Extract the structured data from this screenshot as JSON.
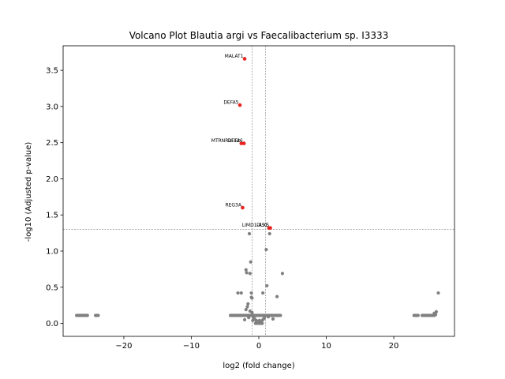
{
  "chart_data": {
    "type": "scatter",
    "title": "Volcano Plot Blautia argi vs Faecalibacterium sp. I3333",
    "xlabel": "log2 (fold change)",
    "ylabel": "-log10 (Adjusted p-value)",
    "xlim": [
      -29.0,
      29.0
    ],
    "ylim": [
      -0.18,
      3.84
    ],
    "xticks": [
      -20,
      -10,
      0,
      10,
      20
    ],
    "yticks": [
      0.0,
      0.5,
      1.0,
      1.5,
      2.0,
      2.5,
      3.0,
      3.5
    ],
    "thresholds": {
      "y": 1.3,
      "x_low": -1.0,
      "x_high": 1.0
    },
    "colors": {
      "significant": "#e8231f",
      "non_significant": "#808080",
      "threshold_line": "#808080"
    },
    "significant_points": [
      {
        "label": "MALAT1",
        "x": -2.1,
        "y": 3.66
      },
      {
        "label": "DEFA5",
        "x": -2.8,
        "y": 3.02
      },
      {
        "label": "MTRNR2L12",
        "x": -2.6,
        "y": 2.49
      },
      {
        "label": "DEFA6",
        "x": -2.2,
        "y": 2.49
      },
      {
        "label": "REG3A",
        "x": -2.4,
        "y": 1.6
      },
      {
        "label": "LIMD1-AS1",
        "x": 1.5,
        "y": 1.32
      },
      {
        "label": "DLX5",
        "x": 1.7,
        "y": 1.32
      }
    ],
    "points": [
      {
        "x": -1.4,
        "y": 1.24
      },
      {
        "x": 1.6,
        "y": 1.24
      },
      {
        "x": 1.1,
        "y": 1.02
      },
      {
        "x": -1.2,
        "y": 0.85
      },
      {
        "x": -1.9,
        "y": 0.74
      },
      {
        "x": -1.8,
        "y": 0.7
      },
      {
        "x": -1.3,
        "y": 0.69
      },
      {
        "x": 3.5,
        "y": 0.69
      },
      {
        "x": 1.2,
        "y": 0.52
      },
      {
        "x": -3.1,
        "y": 0.42
      },
      {
        "x": -2.6,
        "y": 0.42
      },
      {
        "x": -1.1,
        "y": 0.42
      },
      {
        "x": 0.6,
        "y": 0.42
      },
      {
        "x": -1.1,
        "y": 0.36
      },
      {
        "x": -1.0,
        "y": 0.35
      },
      {
        "x": 2.7,
        "y": 0.37
      },
      {
        "x": -1.6,
        "y": 0.27
      },
      {
        "x": -1.7,
        "y": 0.23
      },
      {
        "x": -1.9,
        "y": 0.19
      },
      {
        "x": -1.3,
        "y": 0.17
      },
      {
        "x": -1.0,
        "y": 0.15
      },
      {
        "x": -0.8,
        "y": 0.08
      },
      {
        "x": -0.6,
        "y": 0.06
      },
      {
        "x": -0.4,
        "y": 0.04
      },
      {
        "x": -0.2,
        "y": 0.02
      },
      {
        "x": 0.0,
        "y": 0.0
      },
      {
        "x": 0.2,
        "y": 0.01
      },
      {
        "x": 0.4,
        "y": 0.03
      },
      {
        "x": 0.6,
        "y": 0.05
      },
      {
        "x": -0.3,
        "y": 0.0
      },
      {
        "x": 0.3,
        "y": 0.0
      },
      {
        "x": -0.5,
        "y": 0.0
      },
      {
        "x": 0.5,
        "y": 0.0
      },
      {
        "x": -0.9,
        "y": 0.04
      },
      {
        "x": 0.8,
        "y": 0.07
      },
      {
        "x": -1.5,
        "y": 0.08
      },
      {
        "x": 1.4,
        "y": 0.09
      },
      {
        "x": -2.1,
        "y": 0.05
      },
      {
        "x": 2.1,
        "y": 0.06
      },
      {
        "x": -0.1,
        "y": 0.03
      },
      {
        "x": 0.1,
        "y": 0.04
      },
      {
        "x": 26.6,
        "y": 0.42
      },
      {
        "x": 26.3,
        "y": 0.16
      },
      {
        "x": 26.0,
        "y": 0.14
      },
      {
        "x": 26.2,
        "y": 0.12
      }
    ],
    "clusters": [
      {
        "x_from": -27.0,
        "x_to": -25.4,
        "y": 0.11
      },
      {
        "x_from": -24.2,
        "x_to": -23.8,
        "y": 0.11
      },
      {
        "x_from": -4.2,
        "x_to": 3.2,
        "y": 0.11
      },
      {
        "x_from": 23.0,
        "x_to": 23.6,
        "y": 0.11
      },
      {
        "x_from": 24.2,
        "x_to": 26.0,
        "y": 0.11
      }
    ]
  }
}
